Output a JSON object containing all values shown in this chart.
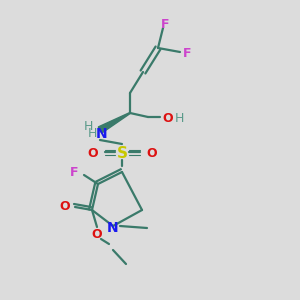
{
  "background_color": "#dcdcdc",
  "figsize": [
    3.0,
    3.0
  ],
  "dpi": 100,
  "bond_color": "#3a7a6a",
  "bond_lw": 1.6,
  "atom_colors": {
    "F": "#cc44cc",
    "N": "#1a1aee",
    "O": "#dd1111",
    "S": "#c8c800",
    "H": "#5a9a8a",
    "C": "#3a7a6a"
  }
}
